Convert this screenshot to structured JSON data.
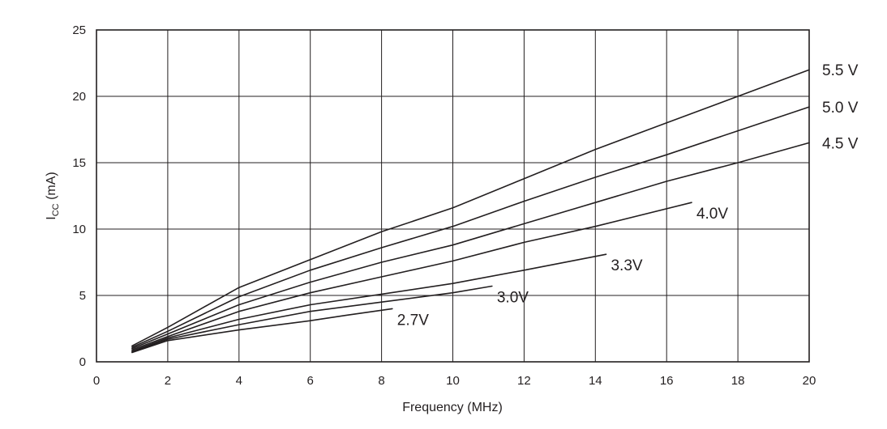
{
  "chart_data": {
    "type": "line",
    "title": "",
    "xlabel": "Frequency (MHz)",
    "ylabel_main": "I",
    "ylabel_sub": "CC",
    "ylabel_suffix": " (mA)",
    "xlim": [
      0,
      20
    ],
    "ylim": [
      0,
      25
    ],
    "xticks": [
      0,
      2,
      4,
      6,
      8,
      10,
      12,
      14,
      16,
      18,
      20
    ],
    "yticks": [
      0,
      5,
      10,
      15,
      20,
      25
    ],
    "grid": true,
    "line_color": "#231f20",
    "series": [
      {
        "name": "5.5 V",
        "x": [
          1,
          2,
          4,
          6,
          8,
          10,
          12,
          14,
          16,
          18,
          20
        ],
        "y": [
          1.2,
          2.6,
          5.6,
          7.7,
          9.8,
          11.6,
          13.8,
          16.0,
          18.0,
          20.0,
          22.0
        ]
      },
      {
        "name": "5.0 V",
        "x": [
          1,
          2,
          4,
          6,
          8,
          10,
          12,
          14,
          16,
          18,
          20
        ],
        "y": [
          1.1,
          2.3,
          4.9,
          6.9,
          8.6,
          10.2,
          12.1,
          13.9,
          15.6,
          17.4,
          19.2
        ]
      },
      {
        "name": "4.5 V",
        "x": [
          1,
          2,
          4,
          6,
          8,
          10,
          12,
          14,
          16,
          18,
          20
        ],
        "y": [
          1.0,
          2.1,
          4.3,
          6.0,
          7.5,
          8.8,
          10.4,
          12.0,
          13.6,
          15.0,
          16.5
        ]
      },
      {
        "name": "4.0V",
        "x": [
          1,
          2,
          4,
          6,
          8,
          10,
          12,
          14,
          16.7
        ],
        "y": [
          0.9,
          1.9,
          3.8,
          5.2,
          6.4,
          7.6,
          9.0,
          10.2,
          12.0
        ]
      },
      {
        "name": "3.3V",
        "x": [
          1,
          2,
          4,
          6,
          8,
          10,
          12,
          14.3
        ],
        "y": [
          0.8,
          1.8,
          3.2,
          4.3,
          5.1,
          5.9,
          6.9,
          8.1
        ]
      },
      {
        "name": "3.0V",
        "x": [
          1,
          2,
          4,
          6,
          8,
          10,
          11.1
        ],
        "y": [
          0.75,
          1.7,
          2.8,
          3.8,
          4.5,
          5.2,
          5.7
        ]
      },
      {
        "name": "2.7V",
        "x": [
          1,
          2,
          4,
          6,
          7,
          8.3
        ],
        "y": [
          0.7,
          1.6,
          2.4,
          3.1,
          3.5,
          4.0
        ]
      }
    ]
  }
}
